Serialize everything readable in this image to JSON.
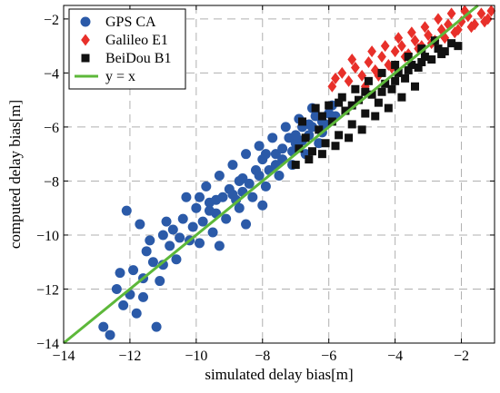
{
  "chart_data": {
    "type": "scatter",
    "xlabel": "simulated delay bias[m]",
    "ylabel": "computed delay bias[m]",
    "xlim": [
      -14,
      -1
    ],
    "ylim": [
      -14,
      -1.5
    ],
    "xticks": [
      -14,
      -12,
      -10,
      -8,
      -6,
      -4,
      -2
    ],
    "yticks": [
      -14,
      -12,
      -10,
      -8,
      -6,
      -4,
      -2
    ],
    "grid": true,
    "legend_position": "top-left",
    "series": [
      {
        "name": "GPS CA",
        "marker": "circle",
        "color": "#2b5aa8",
        "points": [
          [
            -12.8,
            -13.4
          ],
          [
            -12.6,
            -13.7
          ],
          [
            -12.2,
            -12.6
          ],
          [
            -12.4,
            -12.0
          ],
          [
            -12.0,
            -12.2
          ],
          [
            -11.8,
            -12.9
          ],
          [
            -11.2,
            -13.4
          ],
          [
            -11.6,
            -11.6
          ],
          [
            -11.9,
            -11.3
          ],
          [
            -11.5,
            -10.6
          ],
          [
            -12.1,
            -9.1
          ],
          [
            -11.7,
            -9.6
          ],
          [
            -11.3,
            -11.0
          ],
          [
            -11.0,
            -11.1
          ],
          [
            -10.6,
            -10.9
          ],
          [
            -11.0,
            -10.0
          ],
          [
            -10.7,
            -9.8
          ],
          [
            -10.4,
            -9.4
          ],
          [
            -10.2,
            -10.2
          ],
          [
            -10.0,
            -9.0
          ],
          [
            -9.8,
            -9.5
          ],
          [
            -9.6,
            -8.8
          ],
          [
            -9.4,
            -9.2
          ],
          [
            -9.2,
            -8.6
          ],
          [
            -9.0,
            -8.3
          ],
          [
            -8.8,
            -8.7
          ],
          [
            -8.6,
            -7.9
          ],
          [
            -8.4,
            -8.1
          ],
          [
            -8.2,
            -7.6
          ],
          [
            -8.0,
            -7.2
          ],
          [
            -7.8,
            -7.6
          ],
          [
            -7.6,
            -7.0
          ],
          [
            -7.4,
            -6.8
          ],
          [
            -7.2,
            -6.4
          ],
          [
            -7.0,
            -6.6
          ],
          [
            -6.8,
            -6.0
          ],
          [
            -6.6,
            -6.3
          ],
          [
            -6.4,
            -5.6
          ],
          [
            -6.2,
            -5.8
          ],
          [
            -6.0,
            -5.5
          ],
          [
            -9.9,
            -10.3
          ],
          [
            -9.5,
            -9.9
          ],
          [
            -9.1,
            -9.4
          ],
          [
            -8.7,
            -9.0
          ],
          [
            -8.3,
            -8.6
          ],
          [
            -7.9,
            -8.2
          ],
          [
            -7.5,
            -7.8
          ],
          [
            -7.1,
            -7.4
          ],
          [
            -6.7,
            -7.0
          ],
          [
            -6.3,
            -6.6
          ],
          [
            -10.3,
            -8.6
          ],
          [
            -9.7,
            -8.2
          ],
          [
            -9.3,
            -7.8
          ],
          [
            -8.9,
            -7.4
          ],
          [
            -8.5,
            -7.0
          ],
          [
            -8.1,
            -6.7
          ],
          [
            -7.7,
            -6.4
          ],
          [
            -7.3,
            -6.0
          ],
          [
            -6.9,
            -5.7
          ],
          [
            -6.5,
            -5.3
          ],
          [
            -10.8,
            -10.4
          ],
          [
            -11.4,
            -10.2
          ],
          [
            -10.1,
            -9.7
          ],
          [
            -9.9,
            -8.6
          ],
          [
            -9.4,
            -8.7
          ],
          [
            -8.9,
            -8.5
          ],
          [
            -8.6,
            -8.4
          ],
          [
            -8.1,
            -7.8
          ],
          [
            -7.9,
            -7.0
          ],
          [
            -7.6,
            -7.4
          ],
          [
            -7.1,
            -6.9
          ],
          [
            -6.8,
            -6.5
          ],
          [
            -6.5,
            -6.0
          ],
          [
            -6.1,
            -5.9
          ],
          [
            -5.9,
            -5.2
          ],
          [
            -9.3,
            -10.4
          ],
          [
            -8.5,
            -9.6
          ],
          [
            -8.0,
            -8.9
          ],
          [
            -11.1,
            -11.7
          ],
          [
            -12.3,
            -11.4
          ],
          [
            -11.6,
            -12.3
          ],
          [
            -10.9,
            -9.5
          ],
          [
            -10.5,
            -10.1
          ],
          [
            -9.6,
            -9.1
          ],
          [
            -8.7,
            -8.0
          ],
          [
            -7.4,
            -7.2
          ],
          [
            -7.0,
            -6.3
          ],
          [
            -6.6,
            -5.9
          ],
          [
            -6.2,
            -6.2
          ],
          [
            -5.8,
            -5.6
          ]
        ]
      },
      {
        "name": "Galileo E1",
        "marker": "diamond",
        "color": "#e8302a",
        "points": [
          [
            -5.8,
            -4.2
          ],
          [
            -5.6,
            -4.0
          ],
          [
            -5.4,
            -4.3
          ],
          [
            -5.2,
            -3.8
          ],
          [
            -5.0,
            -4.1
          ],
          [
            -4.8,
            -3.6
          ],
          [
            -4.6,
            -3.9
          ],
          [
            -4.4,
            -3.4
          ],
          [
            -4.2,
            -3.7
          ],
          [
            -4.0,
            -3.2
          ],
          [
            -3.8,
            -3.0
          ],
          [
            -3.6,
            -3.3
          ],
          [
            -3.4,
            -2.8
          ],
          [
            -3.2,
            -3.0
          ],
          [
            -3.0,
            -2.6
          ],
          [
            -2.8,
            -2.8
          ],
          [
            -2.6,
            -2.4
          ],
          [
            -2.4,
            -2.2
          ],
          [
            -2.2,
            -2.5
          ],
          [
            -2.0,
            -2.1
          ],
          [
            -1.8,
            -1.9
          ],
          [
            -1.6,
            -2.2
          ],
          [
            -1.4,
            -1.8
          ],
          [
            -1.2,
            -2.0
          ],
          [
            -1.1,
            -1.7
          ],
          [
            -4.9,
            -4.5
          ],
          [
            -4.5,
            -4.1
          ],
          [
            -4.1,
            -3.8
          ],
          [
            -3.7,
            -3.4
          ],
          [
            -3.3,
            -3.1
          ],
          [
            -2.9,
            -2.9
          ],
          [
            -2.5,
            -2.7
          ],
          [
            -2.1,
            -2.4
          ],
          [
            -1.7,
            -2.3
          ],
          [
            -1.3,
            -2.1
          ],
          [
            -5.9,
            -4.5
          ],
          [
            -5.3,
            -3.5
          ],
          [
            -4.7,
            -3.2
          ],
          [
            -4.3,
            -3.0
          ],
          [
            -3.9,
            -2.7
          ],
          [
            -3.5,
            -2.5
          ],
          [
            -3.1,
            -2.3
          ],
          [
            -2.7,
            -2.0
          ],
          [
            -2.3,
            -1.8
          ],
          [
            -1.9,
            -1.7
          ]
        ]
      },
      {
        "name": "BeiDou B1",
        "marker": "square",
        "color": "#111111",
        "points": [
          [
            -6.9,
            -6.8
          ],
          [
            -6.7,
            -6.4
          ],
          [
            -6.5,
            -6.9
          ],
          [
            -6.3,
            -6.1
          ],
          [
            -6.1,
            -6.6
          ],
          [
            -5.9,
            -5.8
          ],
          [
            -5.7,
            -6.3
          ],
          [
            -5.5,
            -5.4
          ],
          [
            -5.3,
            -5.9
          ],
          [
            -5.1,
            -5.0
          ],
          [
            -4.9,
            -5.5
          ],
          [
            -4.7,
            -4.8
          ],
          [
            -4.5,
            -5.1
          ],
          [
            -4.3,
            -4.4
          ],
          [
            -4.1,
            -4.6
          ],
          [
            -3.9,
            -4.0
          ],
          [
            -3.7,
            -4.2
          ],
          [
            -3.5,
            -3.7
          ],
          [
            -3.3,
            -3.8
          ],
          [
            -3.1,
            -3.4
          ],
          [
            -2.9,
            -3.5
          ],
          [
            -2.7,
            -3.1
          ],
          [
            -2.5,
            -3.2
          ],
          [
            -2.3,
            -2.9
          ],
          [
            -2.1,
            -3.0
          ],
          [
            -6.4,
            -5.3
          ],
          [
            -6.0,
            -5.2
          ],
          [
            -5.6,
            -4.9
          ],
          [
            -5.2,
            -4.6
          ],
          [
            -4.8,
            -4.3
          ],
          [
            -4.4,
            -4.0
          ],
          [
            -4.0,
            -3.7
          ],
          [
            -3.6,
            -3.4
          ],
          [
            -3.2,
            -3.1
          ],
          [
            -2.8,
            -2.8
          ],
          [
            -7.0,
            -7.4
          ],
          [
            -6.6,
            -7.2
          ],
          [
            -6.2,
            -7.0
          ],
          [
            -5.8,
            -6.7
          ],
          [
            -5.4,
            -6.4
          ],
          [
            -5.0,
            -6.1
          ],
          [
            -4.6,
            -5.6
          ],
          [
            -4.2,
            -5.3
          ],
          [
            -3.8,
            -4.9
          ],
          [
            -3.4,
            -4.5
          ],
          [
            -6.8,
            -5.8
          ],
          [
            -6.2,
            -5.6
          ],
          [
            -5.7,
            -5.1
          ],
          [
            -5.3,
            -5.2
          ],
          [
            -4.9,
            -4.7
          ],
          [
            -4.4,
            -4.7
          ],
          [
            -4.0,
            -4.3
          ],
          [
            -3.6,
            -3.9
          ],
          [
            -3.2,
            -3.6
          ],
          [
            -2.6,
            -3.3
          ]
        ]
      },
      {
        "name": "y = x",
        "marker": "line",
        "color": "#5db83a",
        "x": [
          -14,
          -1
        ],
        "y": [
          -14,
          -1
        ]
      }
    ]
  }
}
